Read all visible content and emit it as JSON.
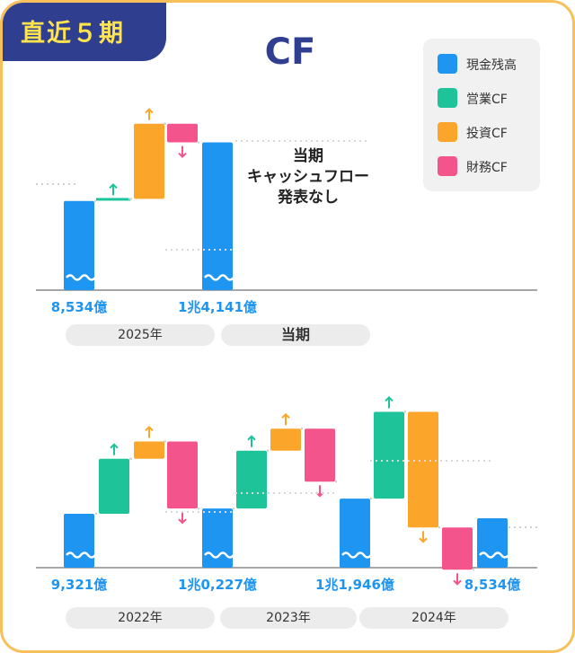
{
  "badge": "直近５期",
  "title": "CF",
  "legend": [
    {
      "label": "現金残高",
      "color": "#1f95f2"
    },
    {
      "label": "営業CF",
      "color": "#1ec39a"
    },
    {
      "label": "投資CF",
      "color": "#fba62b"
    },
    {
      "label": "財務CF",
      "color": "#f4548c"
    }
  ],
  "note_lines": [
    "当期",
    "キャッシュフロー",
    "発表なし"
  ],
  "chart_data": [
    {
      "type": "waterfall",
      "periods": [
        "2025年",
        "当期"
      ],
      "unit": "億",
      "balance_labels": [
        "8,534億",
        "1兆4,141億"
      ],
      "steps": [
        {
          "kind": "balance",
          "value": 8534
        },
        {
          "kind": "operating",
          "value": 200
        },
        {
          "kind": "investing",
          "value": 7200
        },
        {
          "kind": "financing",
          "value": -1793
        },
        {
          "kind": "balance",
          "value": 14141
        }
      ]
    },
    {
      "type": "waterfall",
      "periods": [
        "2022年",
        "2023年",
        "2024年"
      ],
      "unit": "億",
      "balance_labels": [
        "9,321億",
        "1兆0,227億",
        "1兆1,946億",
        "8,534億"
      ],
      "steps": [
        {
          "kind": "balance",
          "value": 9321
        },
        {
          "kind": "operating",
          "value": 9500
        },
        {
          "kind": "investing",
          "value": 3000
        },
        {
          "kind": "financing",
          "value": -11594
        },
        {
          "kind": "balance",
          "value": 10227
        },
        {
          "kind": "operating",
          "value": 10000
        },
        {
          "kind": "investing",
          "value": 3800
        },
        {
          "kind": "financing",
          "value": -9160
        },
        {
          "kind": "balance",
          "value": 11946
        },
        {
          "kind": "operating",
          "value": 15000
        },
        {
          "kind": "investing",
          "value": -20000
        },
        {
          "kind": "financing",
          "value": -7300
        },
        {
          "kind": "balance",
          "value": 8534
        }
      ]
    }
  ]
}
